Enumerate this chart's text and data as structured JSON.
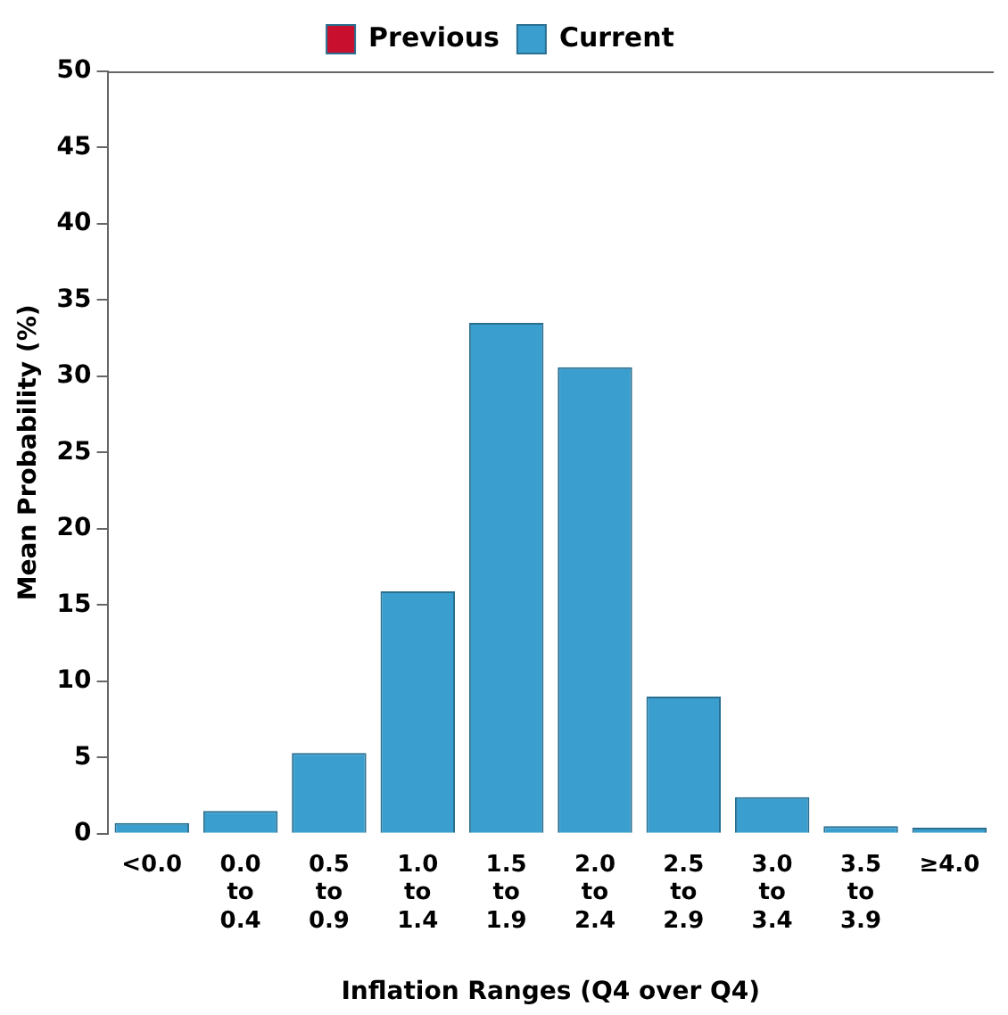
{
  "chart_data": {
    "type": "bar",
    "xlabel": "Inflation Ranges (Q4 over Q4)",
    "ylabel": "Mean Probability (%)",
    "categories": [
      "<0.0",
      "0.0\nto\n0.4",
      "0.5\nto\n0.9",
      "1.0\nto\n1.4",
      "1.5\nto\n1.9",
      "2.0\nto\n2.4",
      "2.5\nto\n2.9",
      "3.0\nto\n3.4",
      "3.5\nto\n3.9",
      "≥4.0"
    ],
    "series": [
      {
        "name": "Previous",
        "color": "#c8102e",
        "values": [
          null,
          null,
          null,
          null,
          null,
          null,
          null,
          null,
          null,
          null
        ]
      },
      {
        "name": "Current",
        "color": "#3a9fcf",
        "values": [
          0.7,
          1.5,
          5.3,
          15.9,
          33.5,
          30.6,
          9.0,
          2.4,
          0.5,
          0.4
        ]
      }
    ],
    "ylim": [
      0,
      50
    ],
    "yticks": [
      0,
      5,
      10,
      15,
      20,
      25,
      30,
      35,
      40,
      45,
      50
    ],
    "grid": false,
    "legend": "top"
  }
}
